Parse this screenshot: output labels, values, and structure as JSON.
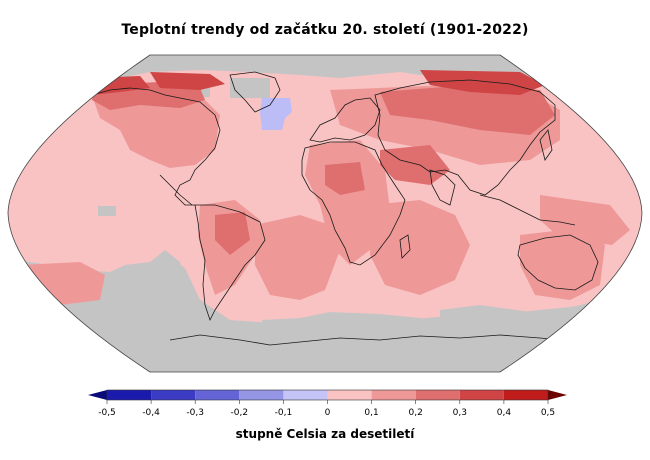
{
  "title": "Teplotní trendy od začátku 20. století (1901-2022)",
  "legend": {
    "unit": "stupně Celsia za desetiletí",
    "ticks": [
      "-0,5",
      "-0,4",
      "-0,3",
      "-0,2",
      "-0,1",
      "0",
      "0,1",
      "0,2",
      "0,3",
      "0,4",
      "0,5"
    ],
    "bins": [
      {
        "from": -0.5,
        "to": -0.4,
        "color": "#1a1aad"
      },
      {
        "from": -0.4,
        "to": -0.3,
        "color": "#3b3bc4"
      },
      {
        "from": -0.3,
        "to": -0.2,
        "color": "#6464d6"
      },
      {
        "from": -0.2,
        "to": -0.1,
        "color": "#9595e6"
      },
      {
        "from": -0.1,
        "to": 0.0,
        "color": "#c4c4f6"
      },
      {
        "from": 0.0,
        "to": 0.1,
        "color": "#f9c3c3"
      },
      {
        "from": 0.1,
        "to": 0.2,
        "color": "#ee9898"
      },
      {
        "from": 0.2,
        "to": 0.3,
        "color": "#df6e6e"
      },
      {
        "from": 0.3,
        "to": 0.4,
        "color": "#cf4545"
      },
      {
        "from": 0.4,
        "to": 0.5,
        "color": "#c01c1c"
      }
    ],
    "low_arrow_color": "#0a0a7a",
    "high_arrow_color": "#6e0000"
  },
  "map": {
    "no_data_color": "#c4c4c4",
    "base_trend_color": "#f9c3c3",
    "moderate_trend_color": "#ee9898",
    "strong_trend_color": "#df6e6e",
    "strongest_trend_color": "#cf4545",
    "cooling_color": "#bcbcf6",
    "coastline_color": "#1a1a1a"
  }
}
